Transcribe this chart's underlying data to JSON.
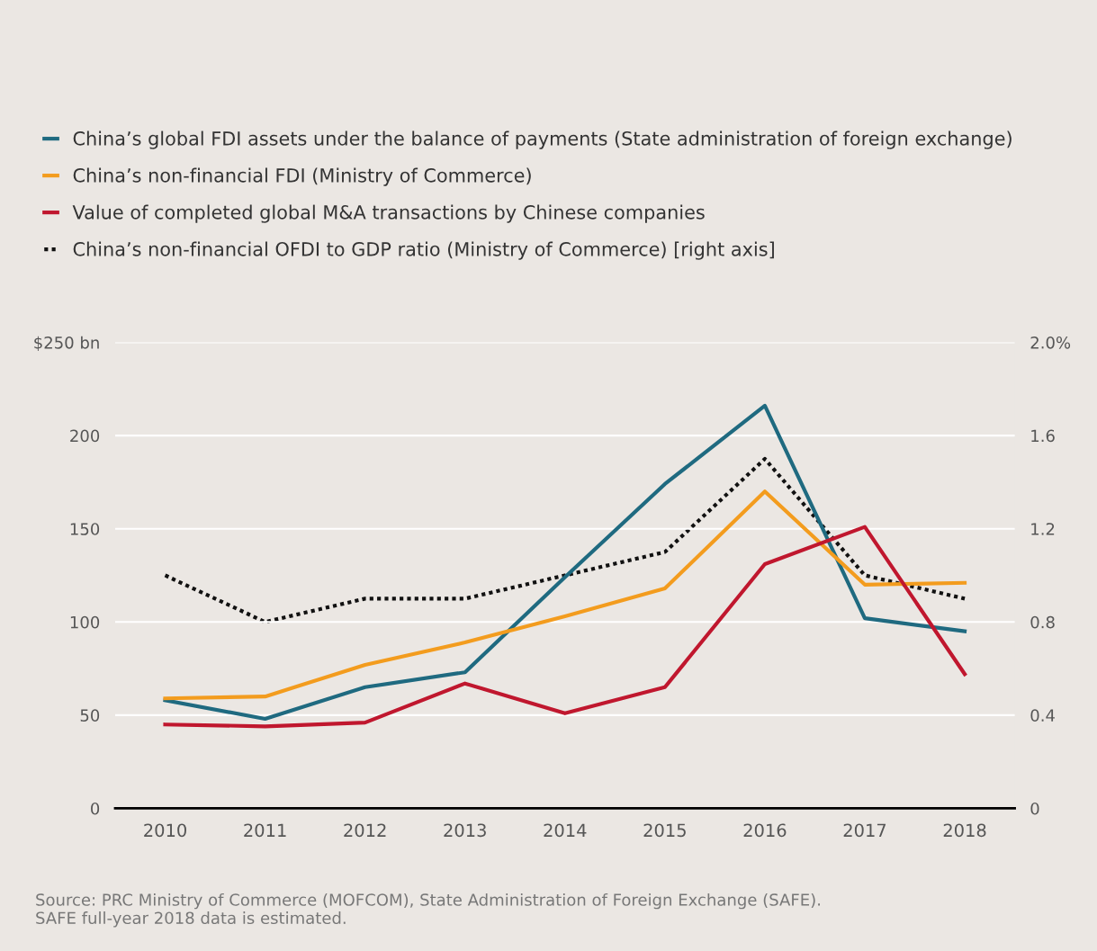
{
  "chart_data": {
    "type": "line",
    "categories": [
      "2010",
      "2011",
      "2012",
      "2013",
      "2014",
      "2015",
      "2016",
      "2017",
      "2018"
    ],
    "series": [
      {
        "name": "China’s global FDI assets under the balance of payments (State administration of foreign exchange)",
        "color": "#1f6a80",
        "values": [
          58,
          48,
          65,
          73,
          124,
          174,
          216,
          102,
          95
        ]
      },
      {
        "name": "China’s non-financial FDI (Ministry of Commerce)",
        "color": "#f39c1e",
        "values": [
          59,
          60,
          77,
          89,
          103,
          118,
          170,
          120,
          121
        ]
      },
      {
        "name": "Value of completed global M&A transactions by Chinese companies",
        "color": "#c0172e",
        "values": [
          45,
          44,
          46,
          67,
          51,
          65,
          131,
          151,
          72
        ]
      },
      {
        "name": "China’s non-financial OFDI to GDP ratio (Ministry of Commerce) [right axis]",
        "color": "#111111",
        "values": [
          1.0,
          0.8,
          0.9,
          0.9,
          1.0,
          1.1,
          1.5,
          1.0,
          0.9
        ],
        "axis": "y2",
        "line_style": "dotted"
      }
    ],
    "ylim": [
      0,
      250
    ],
    "yticks": [
      0,
      50,
      100,
      150,
      200,
      {
        "value": 250,
        "label": "$250 bn"
      }
    ],
    "y2lim": [
      0,
      2.0
    ],
    "y2ticks": [
      0,
      0.4,
      0.8,
      1.2,
      1.6,
      {
        "value": 2.0,
        "label": "2.0%"
      }
    ],
    "grid": "y",
    "legend": "top left",
    "line_style": "solid",
    "marker": "none",
    "annotations": [
      "Source: PRC Ministry of Commerce (MOFCOM), State Administration of Foreign Exchange (SAFE).\nSAFE full-year 2018 data is estimated."
    ]
  }
}
